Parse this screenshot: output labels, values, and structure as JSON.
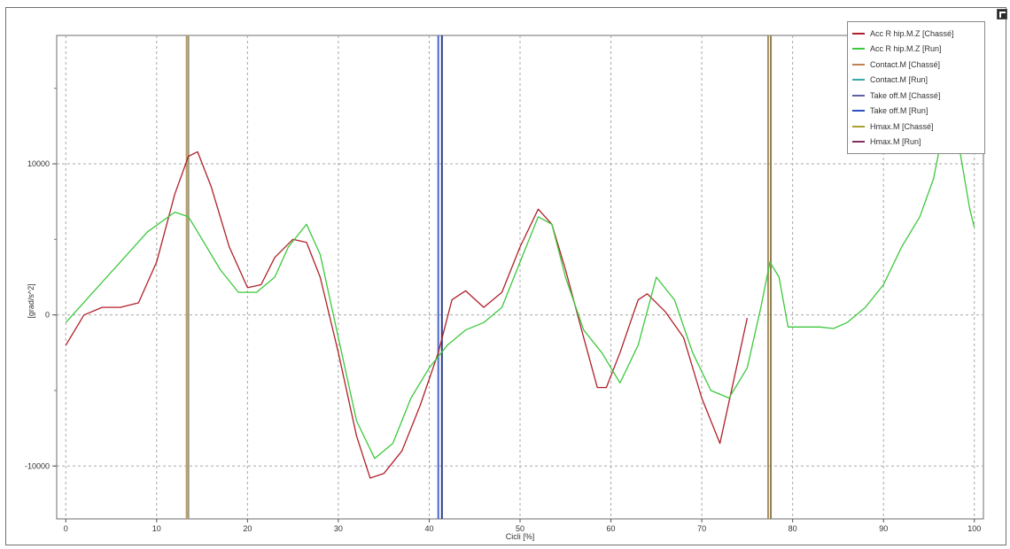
{
  "chart_data": {
    "type": "line",
    "xlabel": "Cicli [%]",
    "ylabel": "[grad/s^2]",
    "xlim": [
      -1,
      101
    ],
    "ylim": [
      -13500,
      18500
    ],
    "xticks": [
      0,
      10,
      20,
      30,
      40,
      50,
      60,
      70,
      80,
      90,
      100
    ],
    "yticks": [
      -10000,
      0,
      10000
    ],
    "grid": true,
    "legend_position": "top-right",
    "series": [
      {
        "name": "Acc R hip.M.Z [Chassé]",
        "color": "#b0202a",
        "x": [
          0,
          2,
          4,
          6,
          8,
          10,
          12,
          13.5,
          14.5,
          16,
          18,
          20,
          21.5,
          23,
          25,
          26.5,
          28,
          30,
          32,
          33.5,
          35,
          37,
          39,
          41,
          42.5,
          44,
          46,
          48,
          50,
          52,
          53.5,
          55,
          57,
          58.5,
          59.5,
          61,
          63,
          64,
          66,
          68,
          70,
          72,
          74,
          75
        ],
        "y": [
          -2000,
          0,
          500,
          500,
          800,
          3500,
          8000,
          10500,
          10800,
          8500,
          4500,
          1800,
          2000,
          3800,
          5000,
          4800,
          2500,
          -2500,
          -8000,
          -10800,
          -10500,
          -9000,
          -6000,
          -2500,
          1000,
          1600,
          500,
          1500,
          4500,
          7000,
          6000,
          3000,
          -1500,
          -4800,
          -4800,
          -2500,
          1000,
          1400,
          200,
          -1500,
          -5500,
          -8500,
          -3000,
          -200
        ]
      },
      {
        "name": "Acc R hip.M.Z [Run]",
        "color": "#3cc83c",
        "x": [
          0,
          3,
          6,
          9,
          12,
          13.5,
          15,
          17,
          19,
          21,
          23,
          24.5,
          26.5,
          28,
          30,
          32,
          34,
          36,
          38,
          40,
          42,
          44,
          46,
          48,
          50,
          52,
          53.5,
          55,
          57,
          59,
          61,
          63,
          65,
          67,
          69,
          71,
          73,
          75,
          76.5,
          77.5,
          78.5,
          79.5,
          81,
          83,
          84.5,
          86,
          88,
          90,
          92,
          94,
          95.5,
          96.5,
          97.5,
          98.5,
          99.5,
          100
        ],
        "y": [
          -500,
          1500,
          3500,
          5500,
          6800,
          6500,
          5000,
          3000,
          1500,
          1500,
          2500,
          4500,
          6000,
          4000,
          -1500,
          -7000,
          -9500,
          -8500,
          -5500,
          -3500,
          -2000,
          -1000,
          -500,
          500,
          3500,
          6500,
          6000,
          2500,
          -1000,
          -2500,
          -4500,
          -2000,
          2500,
          1000,
          -2500,
          -5000,
          -5500,
          -3500,
          500,
          3500,
          2500,
          -800,
          -800,
          -800,
          -900,
          -500,
          500,
          2000,
          4500,
          6500,
          9000,
          12000,
          15000,
          10500,
          7000,
          5800
        ]
      }
    ],
    "vertical_markers": [
      {
        "name": "Contact.M [Chassé]",
        "x": 13.3,
        "color": "#b89a68"
      },
      {
        "name": "Contact.M [Run]",
        "x": 13.5,
        "color": "#9a9a7a"
      },
      {
        "name": "Take off.M [Chassé]",
        "x": 41.0,
        "color": "#4a66c8"
      },
      {
        "name": "Take off.M [Run]",
        "x": 41.4,
        "color": "#2c3c8c"
      },
      {
        "name": "Hmax.M [Chassé]",
        "x": 77.3,
        "color": "#a89060"
      },
      {
        "name": "Hmax.M [Run]",
        "x": 77.6,
        "color": "#8c8050"
      }
    ],
    "legend": [
      {
        "label": "Acc R hip.M.Z [Chassé]",
        "color": "#b0202a"
      },
      {
        "label": "Acc R hip.M.Z [Run]",
        "color": "#3cc83c"
      },
      {
        "label": "Contact.M [Chassé]",
        "color": "#c08050"
      },
      {
        "label": "Contact.M [Run]",
        "color": "#3aa8a8"
      },
      {
        "label": "Take off.M [Chassé]",
        "color": "#6060a8"
      },
      {
        "label": "Take off.M [Run]",
        "color": "#3050c0"
      },
      {
        "label": "Hmax.M [Chassé]",
        "color": "#a8a030"
      },
      {
        "label": "Hmax.M [Run]",
        "color": "#803060"
      }
    ]
  }
}
